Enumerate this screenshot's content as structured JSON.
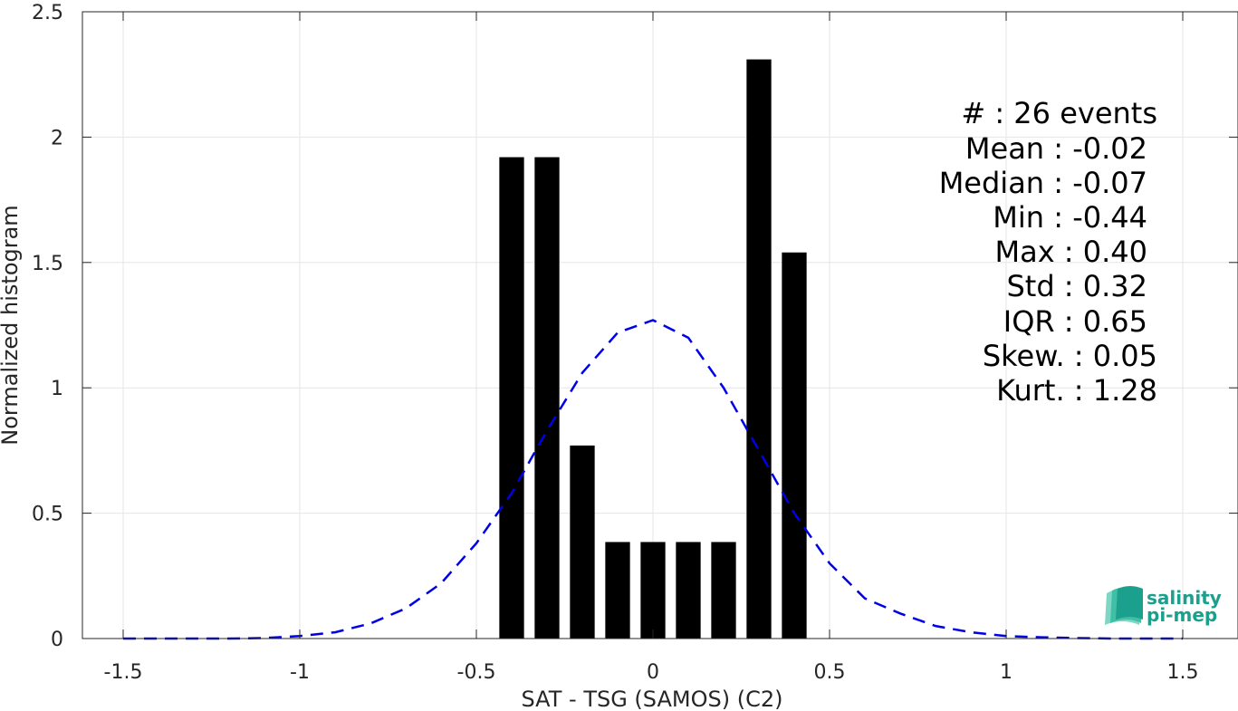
{
  "chart_data": {
    "type": "bar",
    "xlabel": "SAT - TSG (SAMOS) (C2)",
    "ylabel": "Normalized histogram",
    "xlim": [
      -1.5,
      1.5
    ],
    "ylim": [
      0,
      2.5
    ],
    "xticks": [
      -1.5,
      -1,
      -0.5,
      0,
      0.5,
      1,
      1.5
    ],
    "xtick_labels": [
      "-1.5",
      "-1",
      "-0.5",
      "0",
      "0.5",
      "1",
      "1.5"
    ],
    "yticks": [
      0,
      0.5,
      1,
      1.5,
      2,
      2.5
    ],
    "ytick_labels": [
      "0",
      "0.5",
      "1",
      "1.5",
      "2",
      "2.5"
    ],
    "grid": true,
    "bar_width": 0.07,
    "bars": [
      {
        "x": -0.4,
        "value": 1.92
      },
      {
        "x": -0.3,
        "value": 1.92
      },
      {
        "x": -0.2,
        "value": 0.77
      },
      {
        "x": -0.1,
        "value": 0.385
      },
      {
        "x": 0.0,
        "value": 0.385
      },
      {
        "x": 0.1,
        "value": 0.385
      },
      {
        "x": 0.2,
        "value": 0.385
      },
      {
        "x": 0.3,
        "value": 2.31
      },
      {
        "x": 0.4,
        "value": 1.54
      }
    ],
    "bar_color": "#000000",
    "curve": {
      "color": "#0000e6",
      "style": "dashed",
      "x": [
        -1.5,
        -1.4,
        -1.3,
        -1.2,
        -1.1,
        -1.0,
        -0.9,
        -0.8,
        -0.7,
        -0.6,
        -0.5,
        -0.4,
        -0.3,
        -0.2,
        -0.1,
        0.0,
        0.1,
        0.2,
        0.3,
        0.4,
        0.5,
        0.6,
        0.7,
        0.8,
        0.9,
        1.0,
        1.1,
        1.2,
        1.3,
        1.4,
        1.5
      ],
      "y": [
        0.0,
        0.0,
        0.0,
        0.0,
        0.002,
        0.01,
        0.025,
        0.06,
        0.12,
        0.22,
        0.38,
        0.58,
        0.83,
        1.06,
        1.22,
        1.27,
        1.2,
        1.0,
        0.75,
        0.5,
        0.3,
        0.16,
        0.1,
        0.05,
        0.025,
        0.01,
        0.005,
        0.002,
        0.0,
        0.0,
        0.0
      ]
    }
  },
  "stats": [
    {
      "label": "#  : 26 events"
    },
    {
      "label": "Mean : -0.02"
    },
    {
      "label": "Median : -0.07"
    },
    {
      "label": "Min : -0.44"
    },
    {
      "label": "Max : 0.40"
    },
    {
      "label": "Std : 0.32"
    },
    {
      "label": "IQR : 0.65"
    },
    {
      "label": "Skew. : 0.05"
    },
    {
      "label": "Kurt. : 1.28"
    }
  ],
  "logo": {
    "line1": "salinity",
    "line2": "pi-mep",
    "color": "#1aa08c"
  }
}
